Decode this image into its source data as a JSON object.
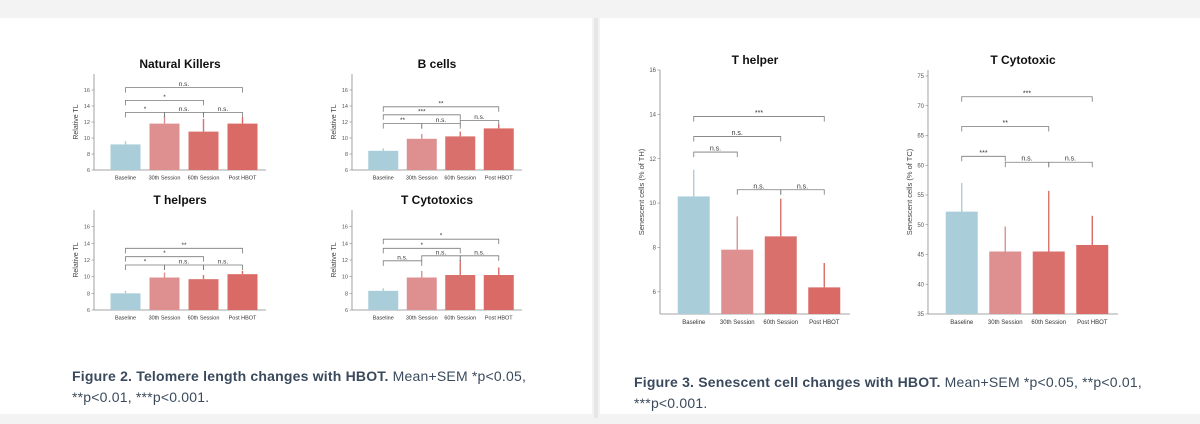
{
  "figure2": {
    "caption_bold": "Figure 2. Telomere length changes with HBOT.",
    "caption_rest": " Mean+SEM *p<0.05, **p<0.01, ***p<0.001."
  },
  "figure3": {
    "caption_bold": "Figure 3. Senescent cell changes with HBOT.",
    "caption_rest": " Mean+SEM *p<0.05, **p<0.01, ***p<0.001."
  },
  "colors": {
    "baseline": "#a9cdd9",
    "session30": "#de9090",
    "session60": "#d9706b",
    "post": "#da6a66",
    "axis": "#888888",
    "bracket": "#7a7a7a"
  },
  "chart_data": [
    {
      "id": "nk",
      "type": "bar",
      "title": "Natural Killers",
      "ylabel": "Relative TL",
      "categories": [
        "Baseline",
        "30th Session",
        "60th Session",
        "Post HBOT"
      ],
      "values": [
        9.2,
        11.8,
        10.8,
        11.8
      ],
      "errors": [
        0.4,
        1.0,
        1.6,
        0.8
      ],
      "ylim": [
        6,
        18
      ],
      "yticks": [
        "6",
        "8",
        "10",
        "12",
        "14",
        "16"
      ],
      "ytick_values": [
        6,
        8,
        10,
        12,
        14,
        16
      ],
      "brackets": [
        {
          "from": 0,
          "to": 3,
          "y": 16.3,
          "label": "n.s."
        },
        {
          "from": 0,
          "to": 2,
          "y": 14.7,
          "label": "*"
        },
        {
          "from": 0,
          "to": 1,
          "y": 13.2,
          "label": "*"
        },
        {
          "from": 1,
          "to": 2,
          "y": 13.2,
          "label": "n.s."
        },
        {
          "from": 2,
          "to": 3,
          "y": 13.2,
          "label": "n.s."
        }
      ]
    },
    {
      "id": "bcells",
      "type": "bar",
      "title": "B cells",
      "ylabel": "Relative TL",
      "categories": [
        "Baseline",
        "30th Session",
        "60th Session",
        "Post HBOT"
      ],
      "values": [
        8.4,
        9.9,
        10.2,
        11.2
      ],
      "errors": [
        0.3,
        0.6,
        0.6,
        0.5
      ],
      "ylim": [
        6,
        18
      ],
      "yticks": [
        "6",
        "8",
        "10",
        "12",
        "14",
        "16"
      ],
      "ytick_values": [
        6,
        8,
        10,
        12,
        14,
        16
      ],
      "brackets": [
        {
          "from": 0,
          "to": 3,
          "y": 13.9,
          "label": "**"
        },
        {
          "from": 0,
          "to": 2,
          "y": 12.9,
          "label": "***"
        },
        {
          "from": 0,
          "to": 1,
          "y": 11.8,
          "label": "**"
        },
        {
          "from": 1,
          "to": 2,
          "y": 11.8,
          "label": "n.s."
        },
        {
          "from": 2,
          "to": 3,
          "y": 12.2,
          "label": "n.s."
        }
      ]
    },
    {
      "id": "thelpers",
      "type": "bar",
      "title": "T helpers",
      "ylabel": "Relative TL",
      "categories": [
        "Baseline",
        "30th Session",
        "60th Session",
        "Post HBOT"
      ],
      "values": [
        8.0,
        9.9,
        9.7,
        10.3
      ],
      "errors": [
        0.3,
        0.6,
        0.5,
        0.4
      ],
      "ylim": [
        6,
        18
      ],
      "yticks": [
        "6",
        "8",
        "10",
        "12",
        "14",
        "16"
      ],
      "ytick_values": [
        6,
        8,
        10,
        12,
        14,
        16
      ],
      "brackets": [
        {
          "from": 0,
          "to": 3,
          "y": 13.4,
          "label": "**"
        },
        {
          "from": 0,
          "to": 2,
          "y": 12.4,
          "label": "*"
        },
        {
          "from": 0,
          "to": 1,
          "y": 11.4,
          "label": "*"
        },
        {
          "from": 1,
          "to": 2,
          "y": 11.4,
          "label": "n.s."
        },
        {
          "from": 2,
          "to": 3,
          "y": 11.4,
          "label": "n.s."
        }
      ]
    },
    {
      "id": "tcytotoxics",
      "type": "bar",
      "title": "T Cytotoxics",
      "ylabel": "Relative TL",
      "categories": [
        "Baseline",
        "30th Session",
        "60th Session",
        "Post HBOT"
      ],
      "values": [
        8.3,
        9.9,
        10.2,
        10.2
      ],
      "errors": [
        0.3,
        0.8,
        1.8,
        0.9
      ],
      "ylim": [
        6,
        18
      ],
      "yticks": [
        "6",
        "8",
        "10",
        "12",
        "14",
        "16"
      ],
      "ytick_values": [
        6,
        8,
        10,
        12,
        14,
        16
      ],
      "brackets": [
        {
          "from": 0,
          "to": 3,
          "y": 14.5,
          "label": "*"
        },
        {
          "from": 0,
          "to": 2,
          "y": 13.4,
          "label": "*"
        },
        {
          "from": 0,
          "to": 1,
          "y": 11.9,
          "label": "n.s."
        },
        {
          "from": 1,
          "to": 2,
          "y": 12.5,
          "label": "n.s."
        },
        {
          "from": 2,
          "to": 3,
          "y": 12.5,
          "label": "n.s."
        }
      ]
    },
    {
      "id": "thelper",
      "type": "bar",
      "title": "T helper",
      "ylabel": "Senescent cells (% of TH)",
      "categories": [
        "Baseline",
        "30th Session",
        "60th Session",
        "Post HBOT"
      ],
      "values": [
        10.3,
        7.9,
        8.5,
        6.2
      ],
      "errors": [
        1.2,
        1.5,
        1.7,
        1.1
      ],
      "ylim": [
        5,
        16
      ],
      "yticks": [
        "6",
        "8",
        "10",
        "12",
        "14",
        "16"
      ],
      "ytick_values": [
        6,
        8,
        10,
        12,
        14,
        16
      ],
      "brackets": [
        {
          "from": 0,
          "to": 3,
          "y": 13.9,
          "label": "***"
        },
        {
          "from": 0,
          "to": 1,
          "y": 12.3,
          "label": "n.s."
        },
        {
          "from": 0,
          "to": 2,
          "y": 13.0,
          "label": "n.s."
        },
        {
          "from": 1,
          "to": 2,
          "y": 10.6,
          "label": "n.s."
        },
        {
          "from": 2,
          "to": 3,
          "y": 10.6,
          "label": "n.s."
        }
      ]
    },
    {
      "id": "tcytotoxic",
      "type": "bar",
      "title": "T Cytotoxic",
      "ylabel": "Senescent cells (% of TC)",
      "categories": [
        "Baseline",
        "30th Session",
        "60th Session",
        "Post HBOT"
      ],
      "values": [
        52.2,
        45.5,
        45.5,
        46.6
      ],
      "errors": [
        4.8,
        4.2,
        10.2,
        4.9
      ],
      "ylim": [
        35,
        76
      ],
      "yticks": [
        "35",
        "40",
        "45",
        "50",
        "55",
        "60",
        "65",
        "70",
        "75"
      ],
      "ytick_values": [
        35,
        40,
        45,
        50,
        55,
        60,
        65,
        70,
        75
      ],
      "brackets": [
        {
          "from": 0,
          "to": 3,
          "y": 71.5,
          "label": "***"
        },
        {
          "from": 0,
          "to": 2,
          "y": 66.5,
          "label": "**"
        },
        {
          "from": 0,
          "to": 1,
          "y": 61.5,
          "label": "***"
        },
        {
          "from": 1,
          "to": 2,
          "y": 60.5,
          "label": "n.s."
        },
        {
          "from": 2,
          "to": 3,
          "y": 60.5,
          "label": "n.s."
        }
      ]
    }
  ]
}
